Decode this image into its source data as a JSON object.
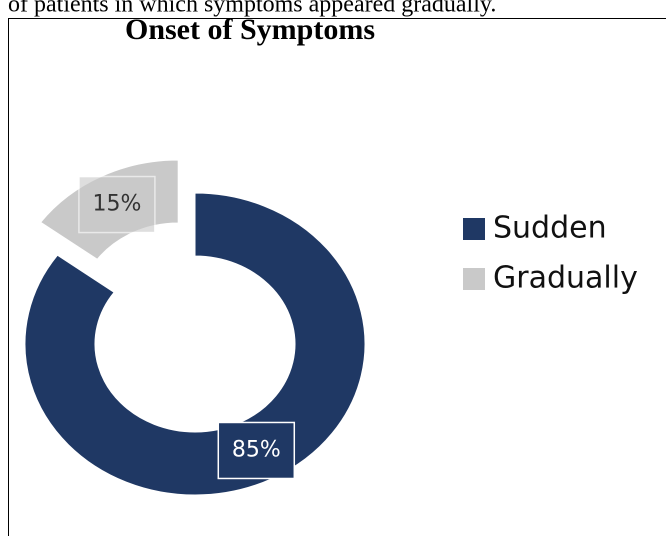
{
  "top_text": "of patients in which symptoms appeared gradually.",
  "chart_data": {
    "type": "donut",
    "title": "Onset of Symptoms",
    "categories": [
      "Sudden",
      "Gradually"
    ],
    "values": [
      85,
      15
    ],
    "value_labels": [
      "85%",
      "15%"
    ],
    "colors": [
      "#1f3864",
      "#c9c9c9"
    ],
    "legend": "right"
  }
}
